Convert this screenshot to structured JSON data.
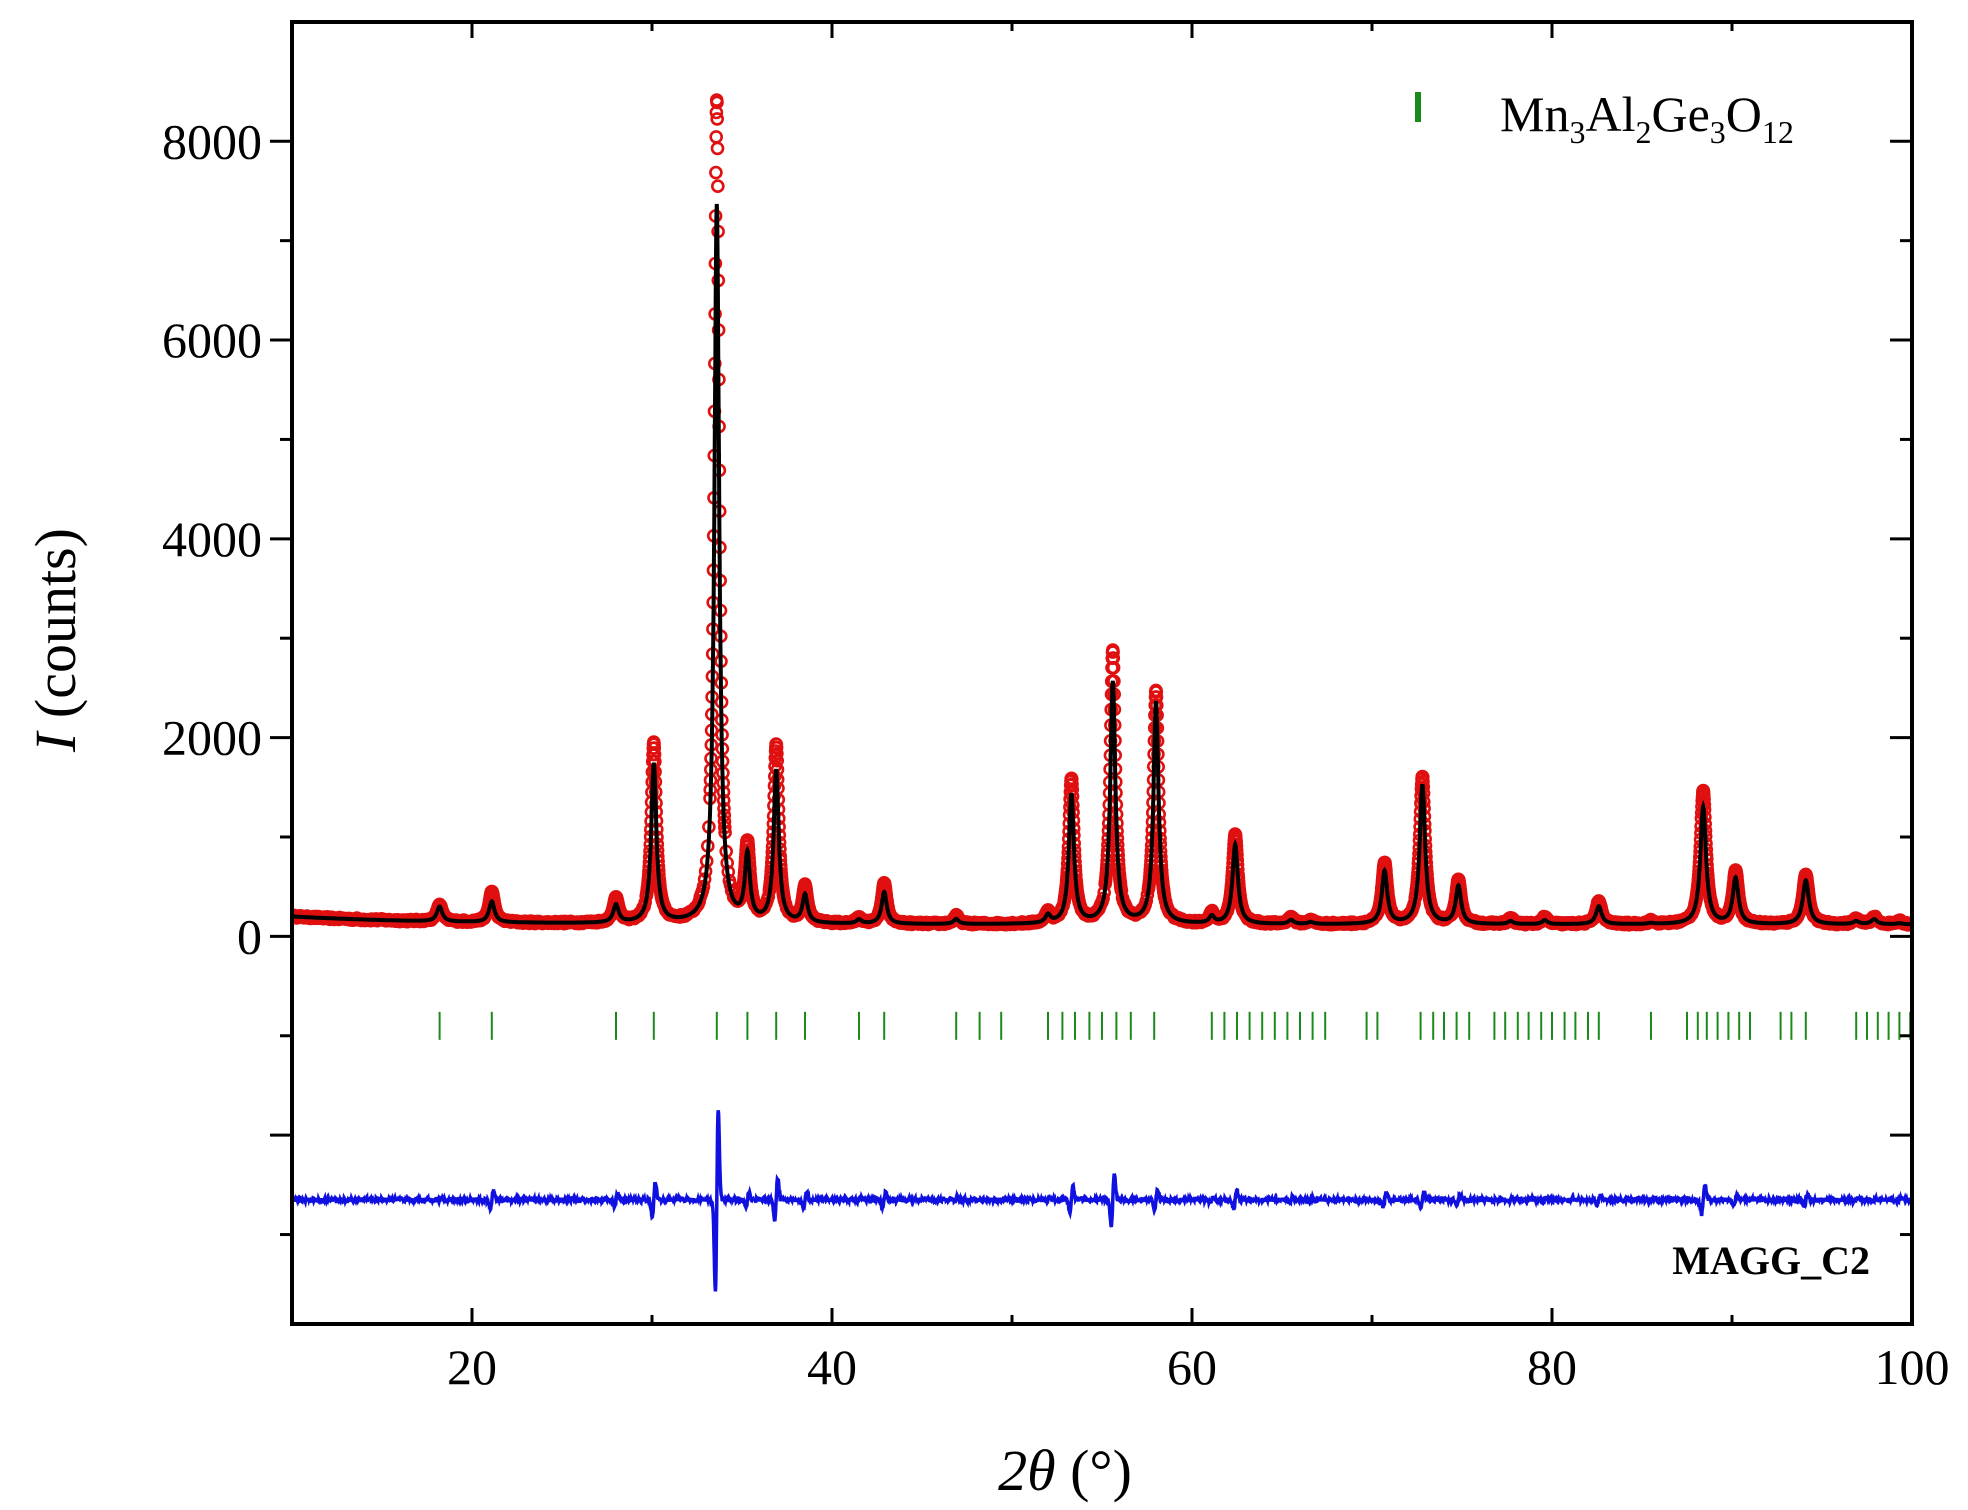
{
  "chart_data": {
    "type": "line",
    "title": "",
    "xlabel": {
      "prefix": "2",
      "symbol": "θ",
      "unit": " (°)"
    },
    "ylabel": {
      "symbol": "I",
      "text": " (counts)"
    },
    "xlim": [
      10,
      100
    ],
    "ylim": [
      -3900,
      9200
    ],
    "xticks": [
      20,
      40,
      60,
      80,
      100
    ],
    "xtick_labels": [
      "20",
      "40",
      "60",
      "80",
      "100"
    ],
    "yticks": [
      0,
      2000,
      4000,
      6000,
      8000
    ],
    "ytick_labels": [
      "0",
      "2000",
      "4000",
      "6000",
      "8000"
    ],
    "legend": {
      "position": "top-right",
      "entries": [
        {
          "marker": "vertical-bar",
          "color": "#1a8a1a",
          "base": "Mn",
          "s1": "3",
          "t1": "Al",
          "s2": "2",
          "t2": "Ge",
          "s3": "3",
          "t3": "O",
          "s4": "12"
        }
      ]
    },
    "annotation": "MAGG_C2",
    "background": 120,
    "peaks": [
      {
        "x": 18.2,
        "yobs": 290,
        "ycalc": 270,
        "w": 0.18
      },
      {
        "x": 21.1,
        "yobs": 430,
        "ycalc": 330,
        "w": 0.18
      },
      {
        "x": 28.0,
        "yobs": 370,
        "ycalc": 300,
        "w": 0.18
      },
      {
        "x": 30.1,
        "yobs": 1920,
        "ycalc": 1720,
        "w": 0.17
      },
      {
        "x": 33.6,
        "yobs": 8400,
        "ycalc": 7350,
        "w": 0.16
      },
      {
        "x": 35.3,
        "yobs": 870,
        "ycalc": 780,
        "w": 0.17
      },
      {
        "x": 36.9,
        "yobs": 1900,
        "ycalc": 1650,
        "w": 0.17
      },
      {
        "x": 38.5,
        "yobs": 480,
        "ycalc": 400,
        "w": 0.17
      },
      {
        "x": 41.5,
        "yobs": 180,
        "ycalc": 160,
        "w": 0.17
      },
      {
        "x": 42.9,
        "yobs": 530,
        "ycalc": 440,
        "w": 0.17
      },
      {
        "x": 46.9,
        "yobs": 200,
        "ycalc": 170,
        "w": 0.17
      },
      {
        "x": 52.0,
        "yobs": 230,
        "ycalc": 200,
        "w": 0.17
      },
      {
        "x": 53.3,
        "yobs": 1570,
        "ycalc": 1420,
        "w": 0.17
      },
      {
        "x": 55.6,
        "yobs": 2860,
        "ycalc": 2550,
        "w": 0.17
      },
      {
        "x": 58.0,
        "yobs": 2460,
        "ycalc": 2350,
        "w": 0.17
      },
      {
        "x": 61.1,
        "yobs": 220,
        "ycalc": 190,
        "w": 0.17
      },
      {
        "x": 62.4,
        "yobs": 1020,
        "ycalc": 920,
        "w": 0.18
      },
      {
        "x": 65.5,
        "yobs": 190,
        "ycalc": 160,
        "w": 0.18
      },
      {
        "x": 66.6,
        "yobs": 160,
        "ycalc": 140,
        "w": 0.18
      },
      {
        "x": 70.7,
        "yobs": 730,
        "ycalc": 650,
        "w": 0.18
      },
      {
        "x": 72.8,
        "yobs": 1600,
        "ycalc": 1520,
        "w": 0.18
      },
      {
        "x": 74.8,
        "yobs": 560,
        "ycalc": 500,
        "w": 0.18
      },
      {
        "x": 77.7,
        "yobs": 180,
        "ycalc": 150,
        "w": 0.18
      },
      {
        "x": 79.6,
        "yobs": 190,
        "ycalc": 160,
        "w": 0.18
      },
      {
        "x": 82.6,
        "yobs": 350,
        "ycalc": 300,
        "w": 0.19
      },
      {
        "x": 85.5,
        "yobs": 150,
        "ycalc": 130,
        "w": 0.19
      },
      {
        "x": 88.4,
        "yobs": 1460,
        "ycalc": 1300,
        "w": 0.19
      },
      {
        "x": 90.2,
        "yobs": 650,
        "ycalc": 580,
        "w": 0.19
      },
      {
        "x": 94.1,
        "yobs": 620,
        "ycalc": 560,
        "w": 0.2
      },
      {
        "x": 96.9,
        "yobs": 170,
        "ycalc": 150,
        "w": 0.2
      },
      {
        "x": 97.9,
        "yobs": 190,
        "ycalc": 170,
        "w": 0.2
      },
      {
        "x": 99.3,
        "yobs": 150,
        "ycalc": 130,
        "w": 0.2
      }
    ],
    "bragg_positions": [
      18.2,
      21.1,
      28.0,
      30.1,
      33.6,
      35.3,
      36.9,
      38.5,
      41.5,
      42.9,
      46.9,
      48.2,
      49.4,
      52.0,
      52.8,
      53.5,
      54.3,
      55.0,
      55.8,
      56.6,
      57.9,
      61.1,
      61.8,
      62.5,
      63.2,
      63.9,
      64.6,
      65.3,
      66.0,
      66.7,
      67.4,
      69.7,
      70.3,
      72.7,
      73.4,
      74.0,
      74.7,
      75.4,
      76.8,
      77.4,
      78.1,
      78.7,
      79.4,
      80.0,
      80.7,
      81.3,
      82.0,
      82.6,
      85.5,
      87.5,
      88.1,
      88.6,
      89.2,
      89.8,
      90.4,
      91.0,
      92.7,
      93.3,
      94.1,
      96.9,
      97.5,
      98.1,
      98.7,
      99.3,
      99.9
    ],
    "bragg_level": -900,
    "difference_offset": -2650,
    "series": [
      {
        "name": "Observed",
        "style": "open-circles",
        "color": "#e01010"
      },
      {
        "name": "Calculated",
        "style": "line",
        "color": "#000000"
      },
      {
        "name": "Difference",
        "style": "line",
        "color": "#1010e0"
      },
      {
        "name": "Bragg positions",
        "style": "ticks",
        "color": "#1a8a1a"
      }
    ]
  }
}
